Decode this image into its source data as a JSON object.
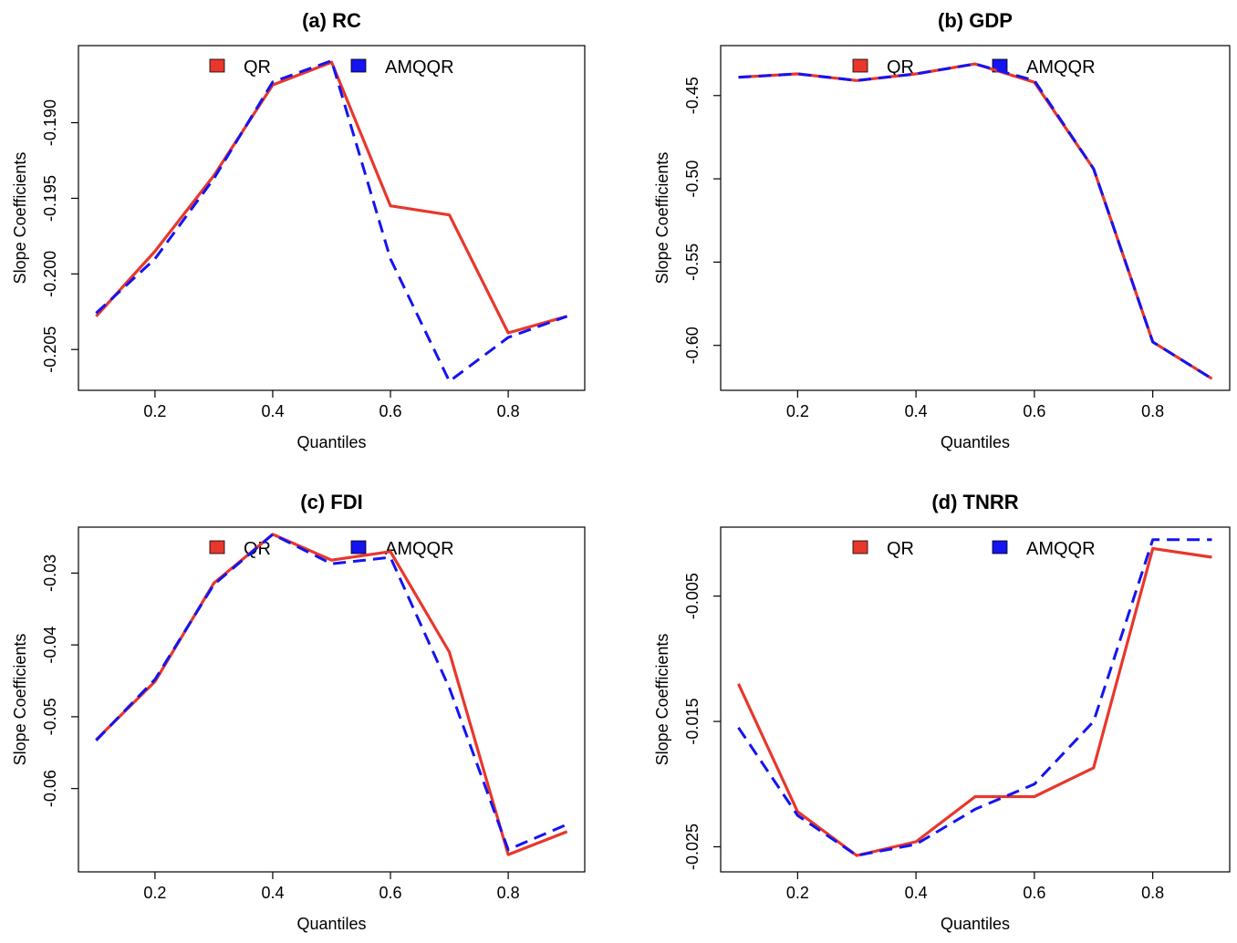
{
  "colors": {
    "qr": "#e8372c",
    "amqqr": "#1414f0",
    "axis": "#000000"
  },
  "chart_data": [
    {
      "type": "line",
      "title": "(a) RC",
      "xlabel": "Quantiles",
      "ylabel": "Slope Coefficients",
      "x": [
        0.1,
        0.2,
        0.3,
        0.4,
        0.5,
        0.6,
        0.7,
        0.8,
        0.9
      ],
      "xlim": [
        0.07,
        0.93
      ],
      "ylim": [
        -0.2077,
        -0.1849
      ],
      "xticks": [
        0.2,
        0.4,
        0.6,
        0.8
      ],
      "xtick_labels": [
        "0.2",
        "0.4",
        "0.6",
        "0.8"
      ],
      "yticks": [
        -0.19,
        -0.195,
        -0.2,
        -0.205
      ],
      "ytick_labels": [
        "-0.190",
        "-0.195",
        "-0.200",
        "-0.205"
      ],
      "legend": [
        "QR",
        "AMQQR"
      ],
      "series": [
        {
          "name": "QR",
          "style": "solid",
          "values": [
            -0.2028,
            -0.1985,
            -0.1935,
            -0.1875,
            -0.186,
            -0.1955,
            -0.1961,
            -0.2039,
            -0.2028
          ]
        },
        {
          "name": "AMQQR",
          "style": "dashed",
          "values": [
            -0.2026,
            -0.199,
            -0.1937,
            -0.1873,
            -0.1859,
            -0.199,
            -0.2071,
            -0.2042,
            -0.2028
          ]
        }
      ]
    },
    {
      "type": "line",
      "title": "(b) GDP",
      "xlabel": "Quantiles",
      "ylabel": "Slope Coefficients",
      "x": [
        0.1,
        0.2,
        0.3,
        0.4,
        0.5,
        0.6,
        0.7,
        0.8,
        0.9
      ],
      "xlim": [
        0.07,
        0.93
      ],
      "ylim": [
        -0.627,
        -0.42
      ],
      "xticks": [
        0.2,
        0.4,
        0.6,
        0.8
      ],
      "xtick_labels": [
        "0.2",
        "0.4",
        "0.6",
        "0.8"
      ],
      "yticks": [
        -0.45,
        -0.5,
        -0.55,
        -0.6
      ],
      "ytick_labels": [
        "-0.45",
        "-0.50",
        "-0.55",
        "-0.60"
      ],
      "legend": [
        "QR",
        "AMQQR"
      ],
      "series": [
        {
          "name": "QR",
          "style": "solid",
          "values": [
            -0.439,
            -0.437,
            -0.441,
            -0.437,
            -0.431,
            -0.442,
            -0.494,
            -0.598,
            -0.62
          ]
        },
        {
          "name": "AMQQR",
          "style": "dashed",
          "values": [
            -0.439,
            -0.437,
            -0.441,
            -0.437,
            -0.431,
            -0.441,
            -0.494,
            -0.598,
            -0.62
          ]
        }
      ]
    },
    {
      "type": "line",
      "title": "(c) FDI",
      "xlabel": "Quantiles",
      "ylabel": "Slope Coefficients",
      "x": [
        0.1,
        0.2,
        0.3,
        0.4,
        0.5,
        0.6,
        0.7,
        0.8,
        0.9
      ],
      "xlim": [
        0.07,
        0.93
      ],
      "ylim": [
        -0.0716,
        -0.0236
      ],
      "xticks": [
        0.2,
        0.4,
        0.6,
        0.8
      ],
      "xtick_labels": [
        "0.2",
        "0.4",
        "0.6",
        "0.8"
      ],
      "yticks": [
        -0.03,
        -0.04,
        -0.05,
        -0.06
      ],
      "ytick_labels": [
        "-0.03",
        "-0.04",
        "-0.05",
        "-0.06"
      ],
      "legend": [
        "QR",
        "AMQQR"
      ],
      "series": [
        {
          "name": "QR",
          "style": "solid",
          "values": [
            -0.0532,
            -0.0451,
            -0.0314,
            -0.0246,
            -0.0282,
            -0.027,
            -0.041,
            -0.0692,
            -0.066
          ]
        },
        {
          "name": "AMQQR",
          "style": "dashed",
          "values": [
            -0.0533,
            -0.0448,
            -0.0316,
            -0.0246,
            -0.0287,
            -0.0278,
            -0.046,
            -0.0685,
            -0.065
          ]
        }
      ]
    },
    {
      "type": "line",
      "title": "(d) TNRR",
      "xlabel": "Quantiles",
      "ylabel": "Slope Coefficients",
      "x": [
        0.1,
        0.2,
        0.3,
        0.4,
        0.5,
        0.6,
        0.7,
        0.8,
        0.9
      ],
      "xlim": [
        0.07,
        0.93
      ],
      "ylim": [
        -0.027,
        0.0005
      ],
      "xticks": [
        0.2,
        0.4,
        0.6,
        0.8
      ],
      "xtick_labels": [
        "0.2",
        "0.4",
        "0.6",
        "0.8"
      ],
      "yticks": [
        -0.005,
        -0.015,
        -0.025
      ],
      "ytick_labels": [
        "-0.005",
        "-0.015",
        "-0.025"
      ],
      "legend": [
        "QR",
        "AMQQR"
      ],
      "series": [
        {
          "name": "QR",
          "style": "solid",
          "values": [
            -0.012,
            -0.0222,
            -0.0257,
            -0.0246,
            -0.021,
            -0.021,
            -0.0187,
            -0.0012,
            -0.0019
          ]
        },
        {
          "name": "AMQQR",
          "style": "dashed",
          "values": [
            -0.0155,
            -0.0225,
            -0.0257,
            -0.0248,
            -0.022,
            -0.02,
            -0.015,
            -0.0005,
            -0.0005
          ]
        }
      ]
    }
  ]
}
